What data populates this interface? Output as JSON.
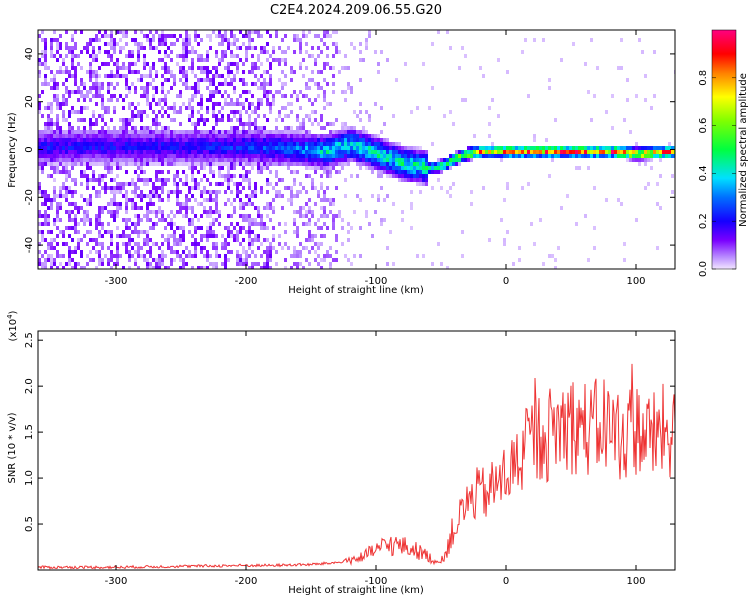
{
  "title": "C2E4.2024.209.06.55.G20",
  "chart_data": [
    {
      "type": "heatmap",
      "xlabel": "Height of straight line (km)",
      "ylabel": "Frequency (Hz)",
      "xlim": [
        -360,
        130
      ],
      "ylim": [
        -50,
        50
      ],
      "x_ticks": [
        -300,
        -200,
        -100,
        0,
        100
      ],
      "y_ticks": [
        -40,
        -20,
        0,
        20,
        40
      ],
      "colorbar": {
        "label": "Normalized spectral amplitude",
        "range": [
          0,
          1
        ],
        "ticks": [
          "0.0",
          "0.2",
          "0.4",
          "0.6",
          "0.8"
        ]
      },
      "ridge": {
        "description_points_x_km": [
          -250,
          -200,
          -160,
          -140,
          -120,
          -100,
          -80,
          -60,
          -50,
          -40,
          -30,
          -20,
          0,
          40,
          80,
          100,
          130
        ],
        "center_freq_hz": [
          2,
          2,
          1,
          0,
          3,
          -1,
          -5,
          -7,
          -6,
          -3,
          -1,
          0,
          0,
          0,
          0,
          -1,
          0
        ],
        "peak_amplitude": [
          0.22,
          0.26,
          0.32,
          0.42,
          0.45,
          0.45,
          0.45,
          0.5,
          0.55,
          0.62,
          0.72,
          0.82,
          0.85,
          0.88,
          0.9,
          0.88,
          0.85
        ]
      }
    },
    {
      "type": "line",
      "xlabel": "Height of straight line (km)",
      "ylabel": "SNR (10 * v/v)",
      "y_scale_label": "(x10",
      "y_scale_exp": "4",
      "y_scale_close": ")",
      "xlim": [
        -360,
        130
      ],
      "ylim": [
        0,
        2.6
      ],
      "x_ticks": [
        -300,
        -200,
        -100,
        0,
        100
      ],
      "y_ticks": [
        0.5,
        1.0,
        1.5,
        2.0,
        2.5
      ],
      "series": [
        {
          "name": "SNR",
          "color": "#ee3333",
          "x": [
            -360,
            -300,
            -250,
            -200,
            -180,
            -150,
            -130,
            -110,
            -100,
            -90,
            -80,
            -70,
            -60,
            -55,
            -50,
            -45,
            -40,
            -35,
            -30,
            -25,
            -20,
            -15,
            -10,
            -5,
            0,
            5,
            10,
            15,
            20,
            25,
            30,
            35,
            40,
            45,
            50,
            55,
            60,
            65,
            70,
            75,
            80,
            85,
            90,
            95,
            100,
            105,
            110,
            115,
            120,
            125,
            130
          ],
          "y": [
            0.03,
            0.03,
            0.04,
            0.05,
            0.05,
            0.06,
            0.08,
            0.14,
            0.22,
            0.28,
            0.26,
            0.22,
            0.15,
            0.1,
            0.08,
            0.25,
            0.45,
            0.6,
            0.72,
            0.8,
            0.85,
            0.82,
            0.9,
            0.95,
            1.05,
            1.1,
            1.2,
            1.3,
            1.4,
            1.45,
            1.45,
            1.5,
            1.55,
            1.6,
            1.6,
            1.58,
            1.55,
            1.52,
            1.55,
            1.6,
            1.55,
            1.5,
            1.45,
            1.5,
            1.55,
            1.5,
            1.45,
            1.45,
            1.5,
            1.5,
            1.45
          ]
        }
      ]
    }
  ]
}
